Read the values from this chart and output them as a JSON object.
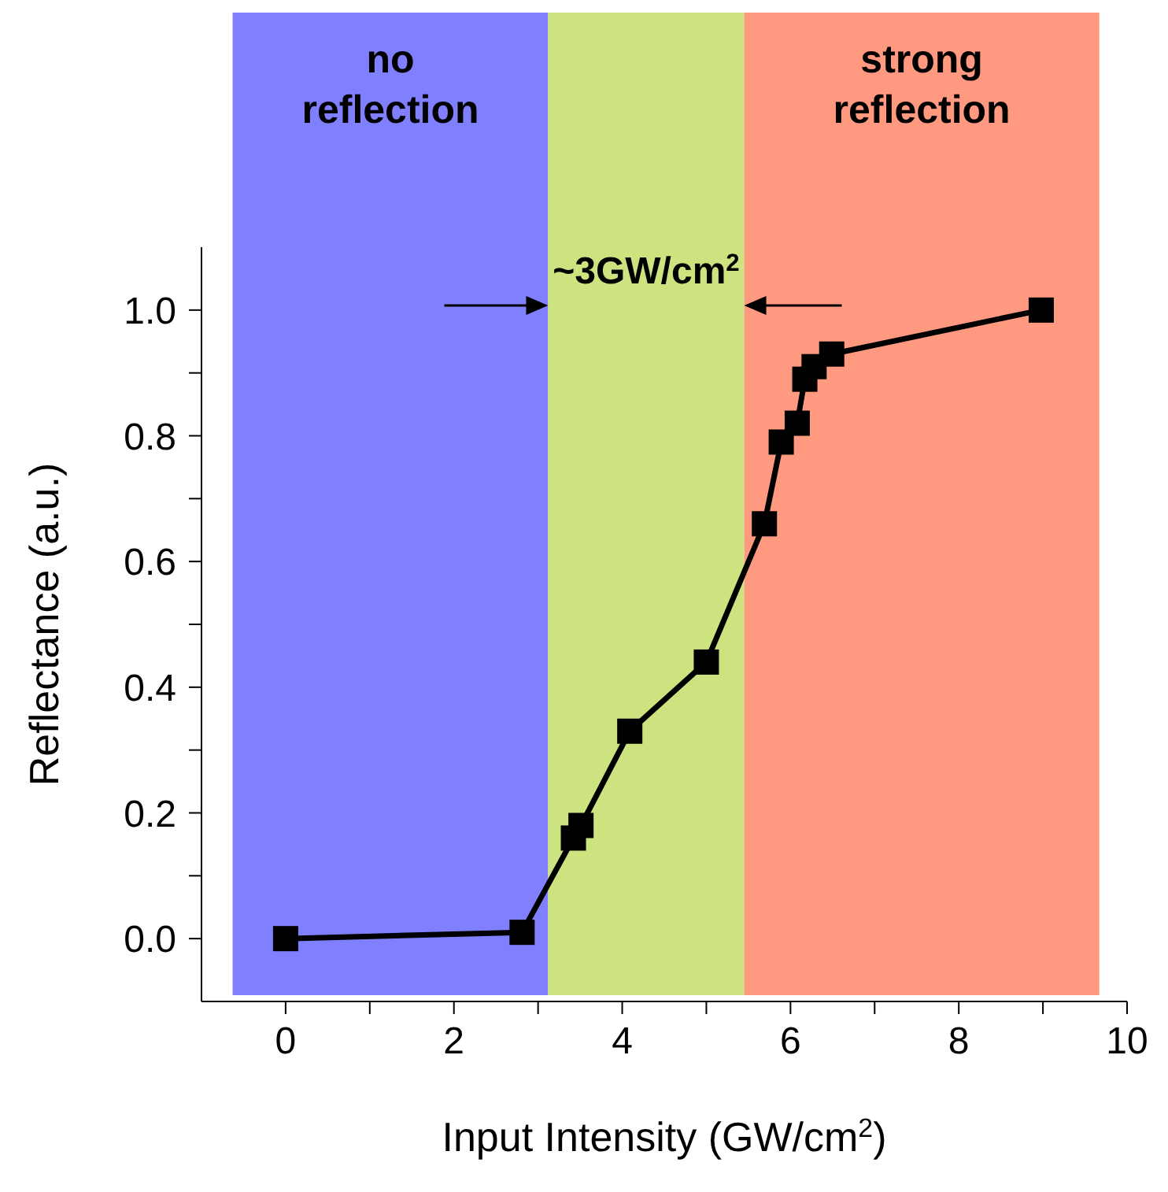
{
  "chart_data": {
    "type": "line",
    "xlabel": "Input Intensity (GW/cm$^{2}$)",
    "ylabel": "Reflectance (a.u.)",
    "x": [
      0,
      2.81,
      3.42,
      3.51,
      4.09,
      5.0,
      5.69,
      5.89,
      6.08,
      6.17,
      6.28,
      6.49,
      8.98
    ],
    "series": [
      {
        "color": "#000000",
        "values": [
          0,
          0.01,
          0.16,
          0.18,
          0.33,
          0.44,
          0.66,
          0.79,
          0.82,
          0.89,
          0.91,
          0.93,
          1.0
        ]
      }
    ],
    "xlim": [
      -1,
      10
    ],
    "xticks": [
      0,
      {
        "value": 1,
        "label": null
      },
      2,
      {
        "value": 3,
        "label": null
      },
      4,
      {
        "value": 5,
        "label": null
      },
      6,
      {
        "value": 7,
        "label": null
      },
      8,
      {
        "value": 9,
        "label": null
      },
      10
    ],
    "ylim": [
      -0.1,
      1.1
    ],
    "yticks": [
      {
        "value": 0,
        "label": "0.0"
      },
      {
        "value": 0.1,
        "label": null
      },
      {
        "value": 0.2,
        "label": "0.2"
      },
      {
        "value": 0.3,
        "label": null
      },
      {
        "value": 0.4,
        "label": "0.4"
      },
      {
        "value": 0.5,
        "label": null
      },
      {
        "value": 0.6,
        "label": "0.6"
      },
      {
        "value": 0.7,
        "label": null
      },
      {
        "value": 0.8,
        "label": "0.8"
      },
      {
        "value": 0.9,
        "label": null
      },
      {
        "value": 1.0,
        "label": "1.0"
      }
    ],
    "bands": [
      {
        "axis": "x",
        "from": -0.63,
        "to": 3.12,
        "label": "no\nreflection",
        "color": "#8080ff"
      },
      {
        "axis": "x",
        "from": 3.12,
        "to": 5.45,
        "label": null,
        "color": "#cde37f"
      },
      {
        "axis": "x",
        "from": 5.45,
        "to": 9.67,
        "label": "strong\nreflection",
        "color": "#ff9a80"
      }
    ],
    "annotations": [
      "~3GW/cm$^{2}$"
    ],
    "marker": "square",
    "line_style": "solid",
    "grid": false,
    "legend": false
  }
}
